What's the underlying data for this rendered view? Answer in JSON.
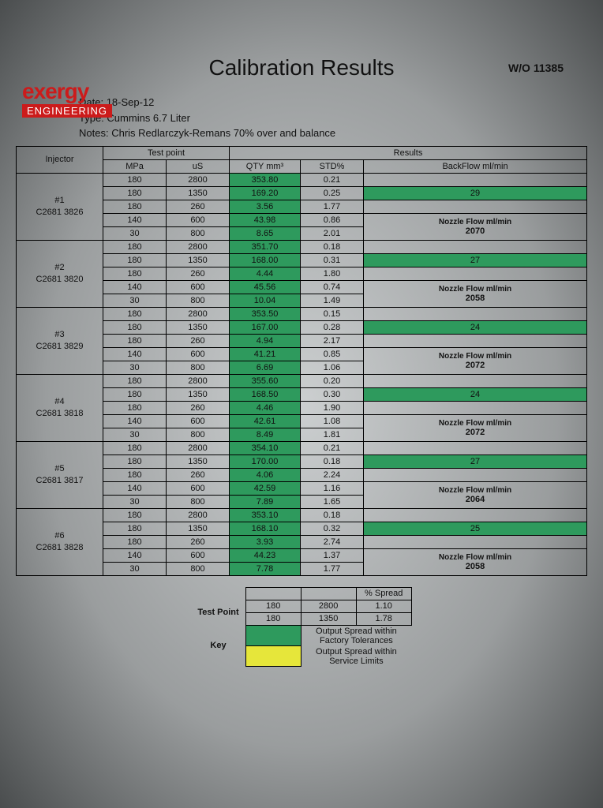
{
  "wo": "W/O 11385",
  "logo": {
    "top": "exergy",
    "bottom": "ENGINEERING"
  },
  "title": "Calibration Results",
  "meta": {
    "date_lbl": "Date:",
    "date": "18-Sep-12",
    "type_lbl": "Type:",
    "type": "Cummins 6.7 Liter",
    "notes_lbl": "Notes:",
    "notes": "Chris Redlarczyk-Remans 70% over and balance"
  },
  "headers": {
    "testpoint": "Test point",
    "results": "Results",
    "injector": "Injector",
    "mpa": "MPa",
    "us": "uS",
    "qty": "QTY mm³",
    "std": "STD%",
    "backflow": "BackFlow ml/min",
    "nozzle": "Nozzle Flow ml/min"
  },
  "injectors": [
    {
      "id": "#1",
      "serial": "C2681 3826",
      "backflow": "29",
      "nozzle": "2070",
      "rows": [
        {
          "mpa": "180",
          "us": "2800",
          "qty": "353.80",
          "std": "0.21"
        },
        {
          "mpa": "180",
          "us": "1350",
          "qty": "169.20",
          "std": "0.25"
        },
        {
          "mpa": "180",
          "us": "260",
          "qty": "3.56",
          "std": "1.77"
        },
        {
          "mpa": "140",
          "us": "600",
          "qty": "43.98",
          "std": "0.86"
        },
        {
          "mpa": "30",
          "us": "800",
          "qty": "8.65",
          "std": "2.01"
        }
      ]
    },
    {
      "id": "#2",
      "serial": "C2681 3820",
      "backflow": "27",
      "nozzle": "2058",
      "rows": [
        {
          "mpa": "180",
          "us": "2800",
          "qty": "351.70",
          "std": "0.18"
        },
        {
          "mpa": "180",
          "us": "1350",
          "qty": "168.00",
          "std": "0.31"
        },
        {
          "mpa": "180",
          "us": "260",
          "qty": "4.44",
          "std": "1.80"
        },
        {
          "mpa": "140",
          "us": "600",
          "qty": "45.56",
          "std": "0.74"
        },
        {
          "mpa": "30",
          "us": "800",
          "qty": "10.04",
          "std": "1.49"
        }
      ]
    },
    {
      "id": "#3",
      "serial": "C2681 3829",
      "backflow": "24",
      "nozzle": "2072",
      "rows": [
        {
          "mpa": "180",
          "us": "2800",
          "qty": "353.50",
          "std": "0.15"
        },
        {
          "mpa": "180",
          "us": "1350",
          "qty": "167.00",
          "std": "0.28"
        },
        {
          "mpa": "180",
          "us": "260",
          "qty": "4.94",
          "std": "2.17"
        },
        {
          "mpa": "140",
          "us": "600",
          "qty": "41.21",
          "std": "0.85"
        },
        {
          "mpa": "30",
          "us": "800",
          "qty": "6.69",
          "std": "1.06"
        }
      ]
    },
    {
      "id": "#4",
      "serial": "C2681 3818",
      "backflow": "24",
      "nozzle": "2072",
      "rows": [
        {
          "mpa": "180",
          "us": "2800",
          "qty": "355.60",
          "std": "0.20"
        },
        {
          "mpa": "180",
          "us": "1350",
          "qty": "168.50",
          "std": "0.30"
        },
        {
          "mpa": "180",
          "us": "260",
          "qty": "4.46",
          "std": "1.90"
        },
        {
          "mpa": "140",
          "us": "600",
          "qty": "42.61",
          "std": "1.08"
        },
        {
          "mpa": "30",
          "us": "800",
          "qty": "8.49",
          "std": "1.81"
        }
      ]
    },
    {
      "id": "#5",
      "serial": "C2681 3817",
      "backflow": "27",
      "nozzle": "2064",
      "rows": [
        {
          "mpa": "180",
          "us": "2800",
          "qty": "354.10",
          "std": "0.21"
        },
        {
          "mpa": "180",
          "us": "1350",
          "qty": "170.00",
          "std": "0.18"
        },
        {
          "mpa": "180",
          "us": "260",
          "qty": "4.06",
          "std": "2.24"
        },
        {
          "mpa": "140",
          "us": "600",
          "qty": "42.59",
          "std": "1.16"
        },
        {
          "mpa": "30",
          "us": "800",
          "qty": "7.89",
          "std": "1.65"
        }
      ]
    },
    {
      "id": "#6",
      "serial": "C2681 3828",
      "backflow": "25",
      "nozzle": "2058",
      "rows": [
        {
          "mpa": "180",
          "us": "2800",
          "qty": "353.10",
          "std": "0.18"
        },
        {
          "mpa": "180",
          "us": "1350",
          "qty": "168.10",
          "std": "0.32"
        },
        {
          "mpa": "180",
          "us": "260",
          "qty": "3.93",
          "std": "2.74"
        },
        {
          "mpa": "140",
          "us": "600",
          "qty": "44.23",
          "std": "1.37"
        },
        {
          "mpa": "30",
          "us": "800",
          "qty": "7.78",
          "std": "1.77"
        }
      ]
    }
  ],
  "footer": {
    "tp_lbl": "Test Point",
    "spread_hdr": "% Spread",
    "rows": [
      {
        "mpa": "180",
        "us": "2800",
        "spread": "1.10"
      },
      {
        "mpa": "180",
        "us": "1350",
        "spread": "1.78"
      }
    ],
    "key_lbl": "Key",
    "key_green": "Output Spread within Factory Tolerances",
    "key_yellow": "Output Spread within Service Limits"
  },
  "colors": {
    "green": "#2e9a5d",
    "yellow": "#e6e63a",
    "red": "#cc1b1b"
  }
}
